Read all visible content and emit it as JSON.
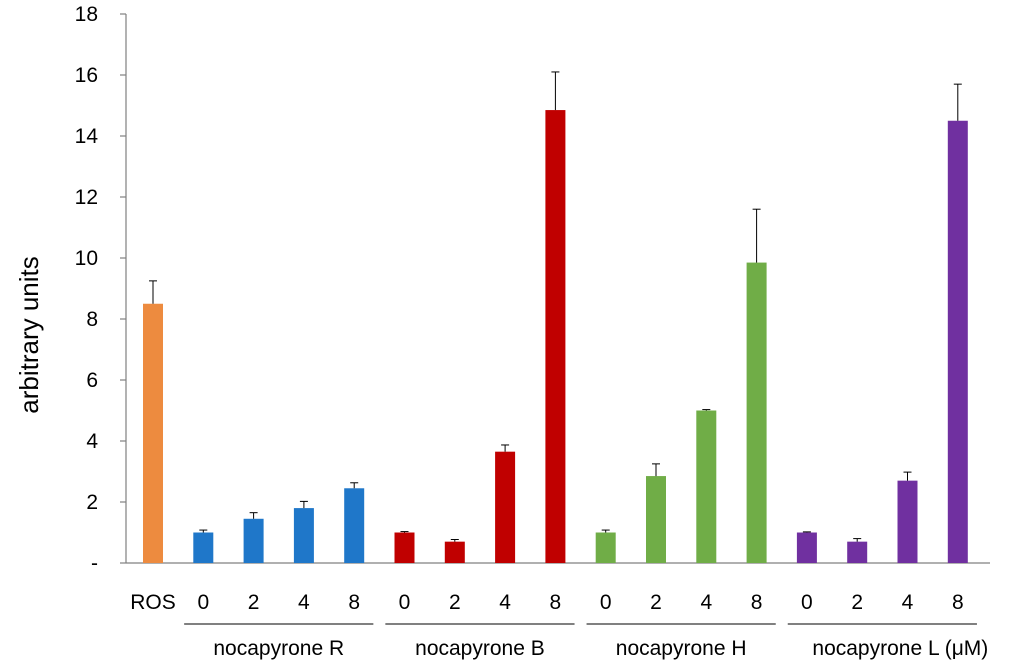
{
  "chart_data": {
    "type": "bar",
    "title": "",
    "ylabel": "arbitrary units",
    "xlabel": "",
    "ylim": [
      0,
      18
    ],
    "yticks": [
      0,
      2,
      4,
      6,
      8,
      10,
      12,
      14,
      16,
      18
    ],
    "ytick_labels": [
      "-",
      "2",
      "4",
      "6",
      "8",
      "10",
      "12",
      "14",
      "16",
      "18"
    ],
    "grid": false,
    "bars": [
      {
        "label": "ROS",
        "group": "ROS",
        "value": 8.5,
        "error": 0.75,
        "color": "#ED8B3F"
      },
      {
        "label": "0",
        "group": "nocapyrone R",
        "value": 1.0,
        "error": 0.08,
        "color": "#1F77C9"
      },
      {
        "label": "2",
        "group": "nocapyrone R",
        "value": 1.45,
        "error": 0.2,
        "color": "#1F77C9"
      },
      {
        "label": "4",
        "group": "nocapyrone R",
        "value": 1.8,
        "error": 0.22,
        "color": "#1F77C9"
      },
      {
        "label": "8",
        "group": "nocapyrone R",
        "value": 2.45,
        "error": 0.18,
        "color": "#1F77C9"
      },
      {
        "label": "0",
        "group": "nocapyrone B",
        "value": 1.0,
        "error": 0.03,
        "color": "#C00000"
      },
      {
        "label": "2",
        "group": "nocapyrone B",
        "value": 0.7,
        "error": 0.07,
        "color": "#C00000"
      },
      {
        "label": "4",
        "group": "nocapyrone B",
        "value": 3.65,
        "error": 0.22,
        "color": "#C00000"
      },
      {
        "label": "8",
        "group": "nocapyrone B",
        "value": 14.85,
        "error": 1.25,
        "color": "#C00000"
      },
      {
        "label": "0",
        "group": "nocapyrone H",
        "value": 1.0,
        "error": 0.08,
        "color": "#70AD47"
      },
      {
        "label": "2",
        "group": "nocapyrone H",
        "value": 2.85,
        "error": 0.4,
        "color": "#70AD47"
      },
      {
        "label": "4",
        "group": "nocapyrone H",
        "value": 5.0,
        "error": 0.03,
        "color": "#70AD47"
      },
      {
        "label": "8",
        "group": "nocapyrone H",
        "value": 9.85,
        "error": 1.75,
        "color": "#70AD47"
      },
      {
        "label": "0",
        "group": "nocapyrone L",
        "value": 1.0,
        "error": 0.02,
        "color": "#7030A0"
      },
      {
        "label": "2",
        "group": "nocapyrone L",
        "value": 0.7,
        "error": 0.1,
        "color": "#7030A0"
      },
      {
        "label": "4",
        "group": "nocapyrone L",
        "value": 2.7,
        "error": 0.28,
        "color": "#7030A0"
      },
      {
        "label": "8",
        "group": "nocapyrone L",
        "value": 14.5,
        "error": 1.2,
        "color": "#7030A0"
      }
    ],
    "groups": [
      {
        "name": "nocapyrone R",
        "label": "nocapyrone R",
        "suffix": ""
      },
      {
        "name": "nocapyrone B",
        "label": "nocapyrone B",
        "suffix": ""
      },
      {
        "name": "nocapyrone H",
        "label": "nocapyrone H",
        "suffix": ""
      },
      {
        "name": "nocapyrone L",
        "label": "nocapyrone L",
        "suffix": "(μM)"
      }
    ]
  }
}
